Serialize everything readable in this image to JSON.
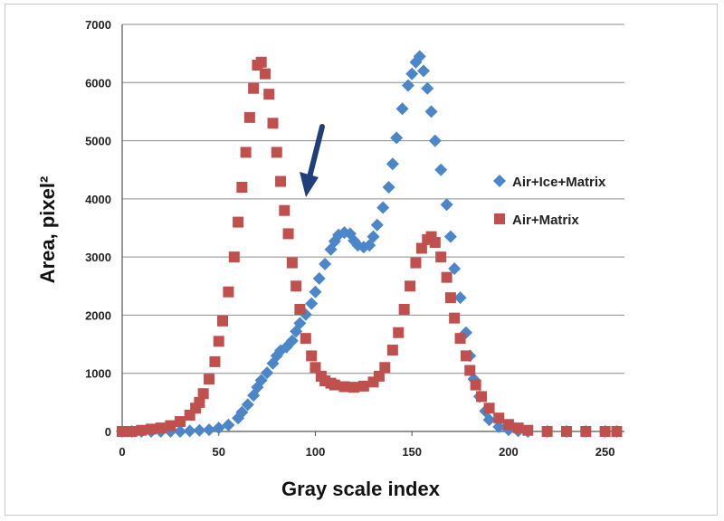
{
  "chart_data": {
    "type": "scatter",
    "xlabel": "Gray scale index",
    "ylabel": "Area, pixel²",
    "xlim": [
      0,
      260
    ],
    "ylim": [
      0,
      7000
    ],
    "xticks": [
      "0",
      "50",
      "100",
      "150",
      "200",
      "250"
    ],
    "yticks": [
      "0",
      "1000",
      "2000",
      "3000",
      "4000",
      "5000",
      "6000",
      "7000"
    ],
    "grid": "horizontal",
    "legend_position": "right",
    "annotation": "downward arrow pointing at Air+Matrix peak shoulder (~x 90, y 4100)",
    "series": [
      {
        "name": "Air+Ice+Matrix",
        "marker": "diamond",
        "color": "#4a86c8",
        "x": [
          0,
          5,
          10,
          15,
          20,
          25,
          30,
          35,
          40,
          45,
          50,
          55,
          60,
          62,
          65,
          68,
          70,
          72,
          75,
          78,
          80,
          82,
          85,
          88,
          90,
          92,
          95,
          98,
          100,
          102,
          105,
          108,
          110,
          112,
          115,
          118,
          120,
          122,
          125,
          128,
          130,
          132,
          135,
          138,
          140,
          142,
          145,
          148,
          150,
          152,
          154,
          156,
          158,
          160,
          162,
          165,
          168,
          170,
          172,
          175,
          178,
          180,
          182,
          185,
          188,
          190,
          195,
          200,
          205,
          210,
          220,
          230,
          240,
          250,
          256
        ],
        "y": [
          0,
          0,
          0,
          0,
          0,
          0,
          0,
          10,
          20,
          30,
          60,
          110,
          230,
          330,
          460,
          620,
          760,
          880,
          1010,
          1170,
          1300,
          1390,
          1450,
          1560,
          1720,
          1860,
          2010,
          2200,
          2400,
          2630,
          2880,
          3130,
          3270,
          3380,
          3420,
          3400,
          3280,
          3200,
          3170,
          3200,
          3350,
          3550,
          3850,
          4200,
          4600,
          5050,
          5550,
          5950,
          6150,
          6350,
          6450,
          6200,
          5900,
          5500,
          5000,
          4500,
          3900,
          3350,
          2800,
          2300,
          1700,
          1300,
          900,
          600,
          350,
          200,
          80,
          30,
          10,
          0,
          0,
          0,
          0,
          0,
          0
        ]
      },
      {
        "name": "Air+Matrix",
        "marker": "square",
        "color": "#c0504d",
        "x": [
          0,
          5,
          10,
          15,
          20,
          25,
          30,
          35,
          38,
          40,
          42,
          45,
          48,
          50,
          52,
          55,
          58,
          60,
          62,
          64,
          66,
          68,
          70,
          72,
          74,
          76,
          78,
          80,
          82,
          84,
          86,
          88,
          90,
          92,
          95,
          98,
          100,
          103,
          105,
          108,
          110,
          115,
          120,
          125,
          130,
          133,
          136,
          140,
          143,
          146,
          149,
          152,
          155,
          158,
          160,
          162,
          165,
          168,
          170,
          172,
          175,
          178,
          180,
          183,
          186,
          190,
          195,
          200,
          205,
          210,
          220,
          230,
          240,
          250,
          256
        ],
        "y": [
          0,
          0,
          20,
          40,
          60,
          100,
          170,
          280,
          400,
          500,
          650,
          900,
          1200,
          1550,
          1900,
          2400,
          3000,
          3600,
          4200,
          4800,
          5400,
          5900,
          6300,
          6350,
          6150,
          5800,
          5300,
          4800,
          4300,
          3800,
          3400,
          2900,
          2500,
          2100,
          1600,
          1300,
          1100,
          950,
          870,
          830,
          800,
          770,
          760,
          780,
          850,
          950,
          1100,
          1400,
          1700,
          2100,
          2500,
          2900,
          3150,
          3300,
          3350,
          3250,
          3000,
          2650,
          2300,
          1950,
          1600,
          1300,
          1050,
          800,
          600,
          400,
          230,
          120,
          60,
          20,
          0,
          0,
          0,
          0,
          0
        ]
      }
    ]
  }
}
